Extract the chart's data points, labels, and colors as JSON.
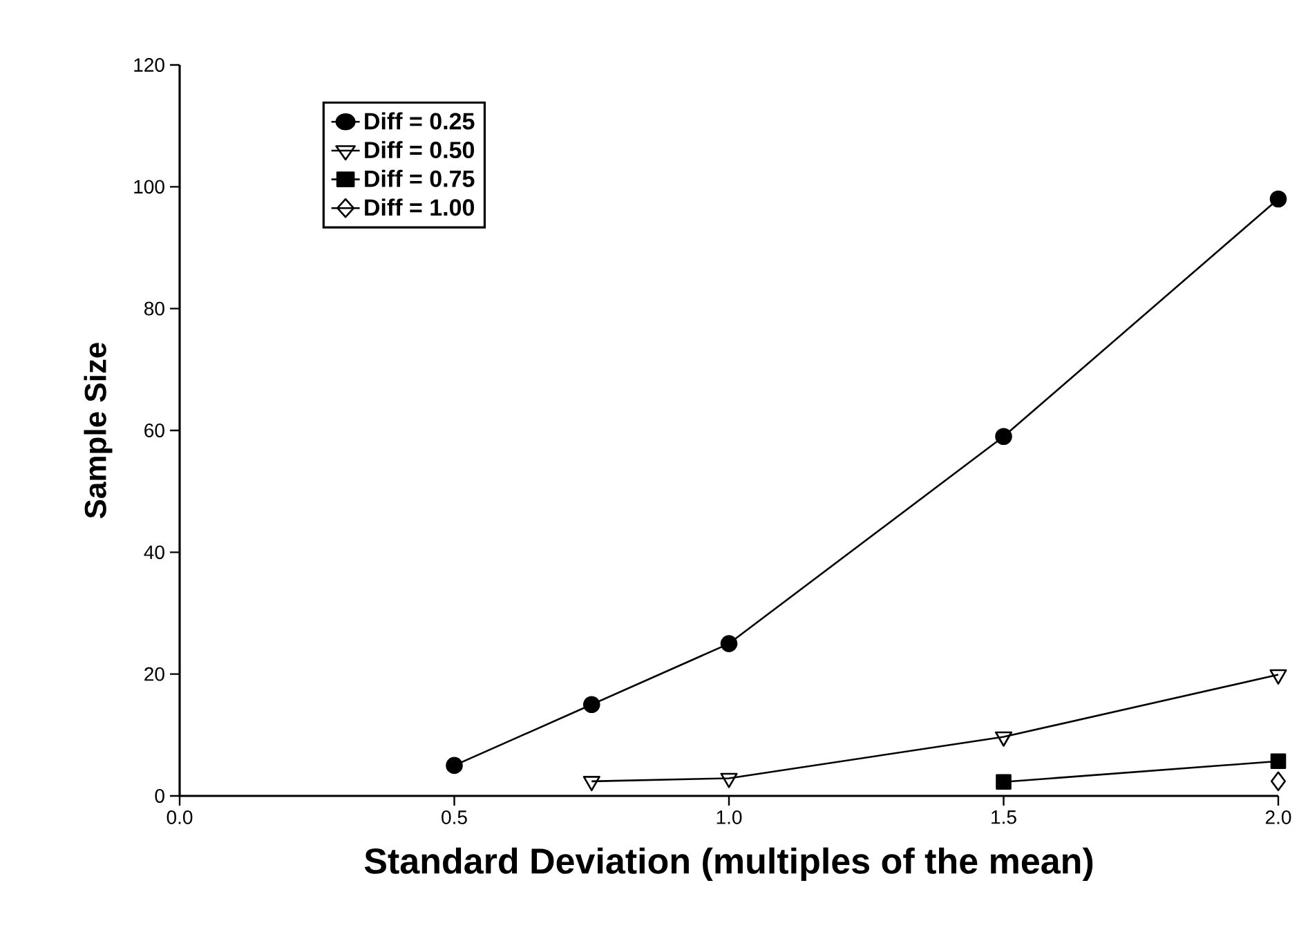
{
  "chart_data": {
    "type": "line",
    "xlabel": "Standard Deviation (multiples of the mean)",
    "ylabel": "Sample Size",
    "xlim": [
      0,
      2.0
    ],
    "ylim": [
      0,
      120
    ],
    "xticks": [
      {
        "value": 0,
        "label": "0.0"
      },
      {
        "value": 0.5,
        "label": "0.5"
      },
      {
        "value": 1.0,
        "label": "1.0"
      },
      {
        "value": 1.5,
        "label": "1.5"
      },
      {
        "value": 2.0,
        "label": "2.0"
      }
    ],
    "yticks": [
      0,
      20,
      40,
      60,
      80,
      100,
      120
    ],
    "grid": false,
    "legend": "top left",
    "line_style": "solid",
    "series": [
      {
        "name": "Diff = 0.25",
        "color": "#000000",
        "marker": "circle",
        "x": [
          0.5,
          0.75,
          1.0,
          1.5,
          2.0
        ],
        "values": [
          5,
          15,
          25,
          59,
          98
        ]
      },
      {
        "name": "Diff = 0.50",
        "color": "#000000",
        "marker": "triangle",
        "x": [
          0.75,
          1.0,
          1.5,
          2.0
        ],
        "values": [
          2.4,
          2.9,
          9.7,
          19.9
        ]
      },
      {
        "name": "Diff = 0.75",
        "color": "#000000",
        "marker": "square",
        "x": [
          1.5,
          2.0
        ],
        "values": [
          2.3,
          5.7
        ]
      },
      {
        "name": "Diff = 1.00",
        "color": "#000000",
        "marker": "diamond",
        "x": [
          2.0
        ],
        "values": [
          2.4
        ]
      }
    ]
  }
}
